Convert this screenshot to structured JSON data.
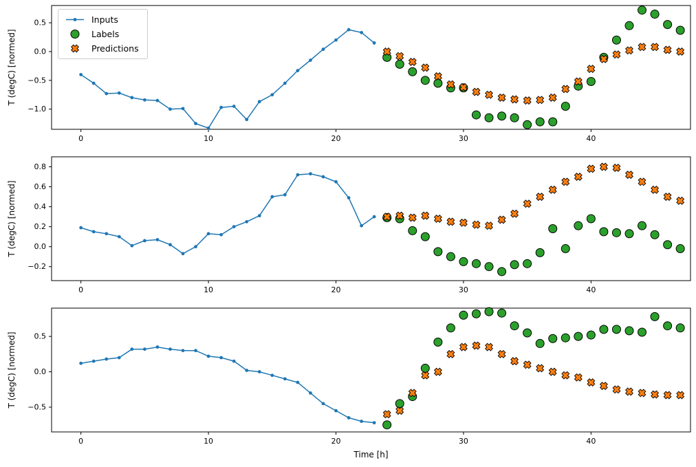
{
  "figure": {
    "background": "#ffffff",
    "xlabel": "Time [h]",
    "ylabel": "T (degC) [normed]"
  },
  "legend": {
    "position": "upper left",
    "items": [
      {
        "label": "Inputs",
        "marker": "line-dot",
        "color": "#1f77b4"
      },
      {
        "label": "Labels",
        "marker": "circle",
        "color": "#2ca02c"
      },
      {
        "label": "Predictions",
        "marker": "x",
        "color": "#ff7f0e"
      }
    ]
  },
  "chart_data": [
    {
      "type": "line",
      "title": "",
      "ylabel": "T (degC) [normed]",
      "xlabel": "",
      "grid": false,
      "xlim": [
        -2.3,
        47.8
      ],
      "ylim": [
        -1.35,
        0.8
      ],
      "xticks": [
        0,
        10,
        20,
        30,
        40
      ],
      "yticks": [
        0.5,
        0.0,
        -0.5,
        -1.0
      ],
      "series": [
        {
          "name": "Inputs",
          "type": "line",
          "color": "#1f77b4",
          "x": [
            0,
            1,
            2,
            3,
            4,
            5,
            6,
            7,
            8,
            9,
            10,
            11,
            12,
            13,
            14,
            15,
            16,
            17,
            18,
            19,
            20,
            21,
            22,
            23
          ],
          "y": [
            -0.4,
            -0.55,
            -0.73,
            -0.72,
            -0.8,
            -0.84,
            -0.85,
            -1.0,
            -0.99,
            -1.25,
            -1.33,
            -0.97,
            -0.95,
            -1.18,
            -0.87,
            -0.75,
            -0.55,
            -0.33,
            -0.15,
            0.04,
            0.2,
            0.38,
            0.33,
            0.15
          ]
        },
        {
          "name": "Labels",
          "type": "scatter-circle",
          "color": "#2ca02c",
          "x": [
            24,
            25,
            26,
            27,
            28,
            29,
            30,
            31,
            32,
            33,
            34,
            35,
            36,
            37,
            38,
            39,
            40,
            41,
            42,
            43,
            44,
            45,
            46,
            47
          ],
          "y": [
            -0.1,
            -0.22,
            -0.35,
            -0.5,
            -0.55,
            -0.63,
            -0.63,
            -1.1,
            -1.15,
            -1.12,
            -1.15,
            -1.27,
            -1.22,
            -1.22,
            -0.95,
            -0.6,
            -0.52,
            -0.1,
            0.2,
            0.45,
            0.72,
            0.65,
            0.47,
            0.37
          ]
        },
        {
          "name": "Predictions",
          "type": "scatter-x",
          "color": "#ff7f0e",
          "x": [
            24,
            25,
            26,
            27,
            28,
            29,
            30,
            31,
            32,
            33,
            34,
            35,
            36,
            37,
            38,
            39,
            40,
            41,
            42,
            43,
            44,
            45,
            46,
            47
          ],
          "y": [
            0.0,
            -0.08,
            -0.18,
            -0.28,
            -0.43,
            -0.57,
            -0.62,
            -0.7,
            -0.75,
            -0.8,
            -0.83,
            -0.85,
            -0.84,
            -0.8,
            -0.65,
            -0.52,
            -0.3,
            -0.13,
            -0.05,
            0.02,
            0.08,
            0.08,
            0.03,
            0.0
          ]
        }
      ]
    },
    {
      "type": "line",
      "title": "",
      "ylabel": "T (degC) [normed]",
      "xlabel": "",
      "grid": false,
      "xlim": [
        -2.3,
        47.8
      ],
      "ylim": [
        -0.34,
        0.9
      ],
      "xticks": [
        0,
        10,
        20,
        30,
        40
      ],
      "yticks": [
        0.8,
        0.6,
        0.4,
        0.2,
        0.0,
        -0.2
      ],
      "series": [
        {
          "name": "Inputs",
          "type": "line",
          "color": "#1f77b4",
          "x": [
            0,
            1,
            2,
            3,
            4,
            5,
            6,
            7,
            8,
            9,
            10,
            11,
            12,
            13,
            14,
            15,
            16,
            17,
            18,
            19,
            20,
            21,
            22,
            23
          ],
          "y": [
            0.19,
            0.15,
            0.13,
            0.1,
            0.01,
            0.06,
            0.07,
            0.02,
            -0.07,
            0.0,
            0.13,
            0.12,
            0.2,
            0.25,
            0.31,
            0.5,
            0.52,
            0.72,
            0.73,
            0.7,
            0.65,
            0.49,
            0.21,
            0.3
          ]
        },
        {
          "name": "Labels",
          "type": "scatter-circle",
          "color": "#2ca02c",
          "x": [
            24,
            25,
            26,
            27,
            28,
            29,
            30,
            31,
            32,
            33,
            34,
            35,
            36,
            37,
            38,
            39,
            40,
            41,
            42,
            43,
            44,
            45,
            46,
            47
          ],
          "y": [
            0.29,
            0.28,
            0.16,
            0.1,
            -0.05,
            -0.1,
            -0.15,
            -0.17,
            -0.2,
            -0.25,
            -0.18,
            -0.17,
            -0.06,
            0.18,
            -0.02,
            0.21,
            0.28,
            0.15,
            0.14,
            0.13,
            0.21,
            0.12,
            0.02,
            -0.02
          ]
        },
        {
          "name": "Predictions",
          "type": "scatter-x",
          "color": "#ff7f0e",
          "x": [
            24,
            25,
            26,
            27,
            28,
            29,
            30,
            31,
            32,
            33,
            34,
            35,
            36,
            37,
            38,
            39,
            40,
            41,
            42,
            43,
            44,
            45,
            46,
            47
          ],
          "y": [
            0.3,
            0.31,
            0.29,
            0.31,
            0.28,
            0.25,
            0.24,
            0.22,
            0.21,
            0.27,
            0.33,
            0.43,
            0.5,
            0.57,
            0.65,
            0.7,
            0.78,
            0.8,
            0.79,
            0.72,
            0.65,
            0.57,
            0.5,
            0.46
          ]
        }
      ]
    },
    {
      "type": "line",
      "title": "",
      "ylabel": "T (degC) [normed]",
      "xlabel": "Time [h]",
      "grid": false,
      "xlim": [
        -2.3,
        47.8
      ],
      "ylim": [
        -0.85,
        0.9
      ],
      "xticks": [
        0,
        10,
        20,
        30,
        40
      ],
      "yticks": [
        0.5,
        0.0,
        -0.5
      ],
      "series": [
        {
          "name": "Inputs",
          "type": "line",
          "color": "#1f77b4",
          "x": [
            0,
            1,
            2,
            3,
            4,
            5,
            6,
            7,
            8,
            9,
            10,
            11,
            12,
            13,
            14,
            15,
            16,
            17,
            18,
            19,
            20,
            21,
            22,
            23
          ],
          "y": [
            0.12,
            0.15,
            0.18,
            0.2,
            0.32,
            0.32,
            0.35,
            0.32,
            0.3,
            0.3,
            0.22,
            0.2,
            0.15,
            0.02,
            0.0,
            -0.05,
            -0.1,
            -0.15,
            -0.3,
            -0.45,
            -0.55,
            -0.65,
            -0.7,
            -0.72
          ]
        },
        {
          "name": "Labels",
          "type": "scatter-circle",
          "color": "#2ca02c",
          "x": [
            24,
            25,
            26,
            27,
            28,
            29,
            30,
            31,
            32,
            33,
            34,
            35,
            36,
            37,
            38,
            39,
            40,
            41,
            42,
            43,
            44,
            45,
            46,
            47
          ],
          "y": [
            -0.75,
            -0.45,
            -0.35,
            0.05,
            0.42,
            0.62,
            0.8,
            0.82,
            0.85,
            0.83,
            0.65,
            0.55,
            0.4,
            0.47,
            0.48,
            0.5,
            0.52,
            0.6,
            0.6,
            0.58,
            0.56,
            0.78,
            0.65,
            0.62
          ]
        },
        {
          "name": "Predictions",
          "type": "scatter-x",
          "color": "#ff7f0e",
          "x": [
            24,
            25,
            26,
            27,
            28,
            29,
            30,
            31,
            32,
            33,
            34,
            35,
            36,
            37,
            38,
            39,
            40,
            41,
            42,
            43,
            44,
            45,
            46,
            47
          ],
          "y": [
            -0.6,
            -0.55,
            -0.3,
            -0.05,
            0.0,
            0.25,
            0.35,
            0.37,
            0.35,
            0.25,
            0.15,
            0.1,
            0.05,
            0.0,
            -0.05,
            -0.08,
            -0.15,
            -0.2,
            -0.25,
            -0.28,
            -0.3,
            -0.32,
            -0.33,
            -0.33
          ]
        }
      ]
    }
  ]
}
